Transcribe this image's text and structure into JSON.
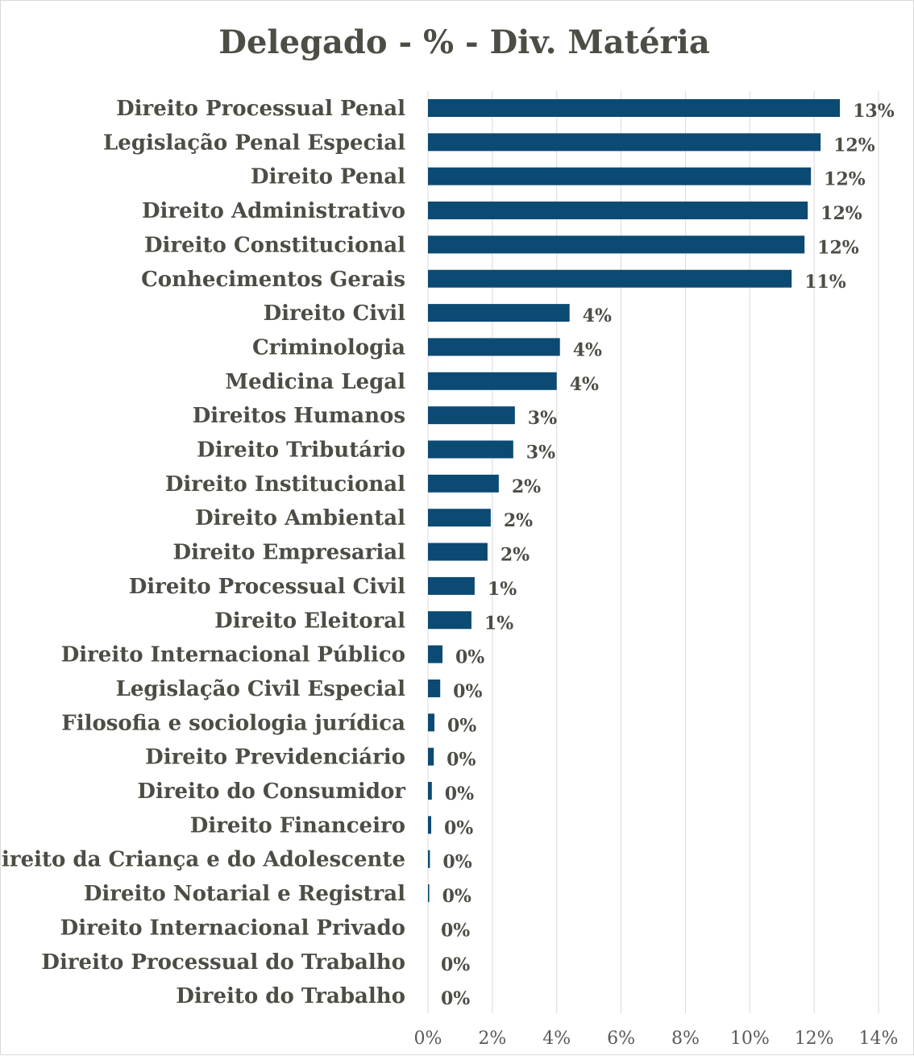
{
  "chart_data": {
    "type": "bar",
    "orientation": "horizontal",
    "title": "Delegado - % - Div. Matéria",
    "bar_color": "#0b4a73",
    "xlim": [
      0,
      14
    ],
    "xticks": [
      0,
      2,
      4,
      6,
      8,
      10,
      12,
      14
    ],
    "xtick_labels": [
      "0%",
      "2%",
      "4%",
      "6%",
      "8%",
      "10%",
      "12%",
      "14%"
    ],
    "grid": true,
    "categories": [
      "Direito Processual Penal",
      "Legislação Penal Especial",
      "Direito Penal",
      "Direito Administrativo",
      "Direito Constitucional",
      "Conhecimentos Gerais",
      "Direito Civil",
      "Criminologia",
      "Medicina Legal",
      "Direitos Humanos",
      "Direito Tributário",
      "Direito Institucional",
      "Direito Ambiental",
      "Direito Empresarial",
      "Direito Processual Civil",
      "Direito Eleitoral",
      "Direito Internacional Público",
      "Legislação Civil Especial",
      "Filosofia e sociologia jurídica",
      "Direito Previdenciário",
      "Direito do Consumidor",
      "Direito Financeiro",
      "Direito da Criança e do Adolescente",
      "Direito Notarial e Registral",
      "Direito Internacional Privado",
      "Direito Processual do Trabalho",
      "Direito do Trabalho"
    ],
    "values": [
      12.8,
      12.2,
      11.9,
      11.8,
      11.7,
      11.3,
      4.4,
      4.1,
      4.0,
      2.7,
      2.65,
      2.2,
      1.95,
      1.85,
      1.45,
      1.35,
      0.45,
      0.38,
      0.2,
      0.18,
      0.12,
      0.1,
      0.06,
      0.04,
      0.0,
      0.0,
      0.0
    ],
    "value_labels": [
      "13%",
      "12%",
      "12%",
      "12%",
      "12%",
      "11%",
      "4%",
      "4%",
      "4%",
      "3%",
      "3%",
      "2%",
      "2%",
      "2%",
      "1%",
      "1%",
      "0%",
      "0%",
      "0%",
      "0%",
      "0%",
      "0%",
      "0%",
      "0%",
      "0%",
      "0%",
      "0%"
    ]
  }
}
